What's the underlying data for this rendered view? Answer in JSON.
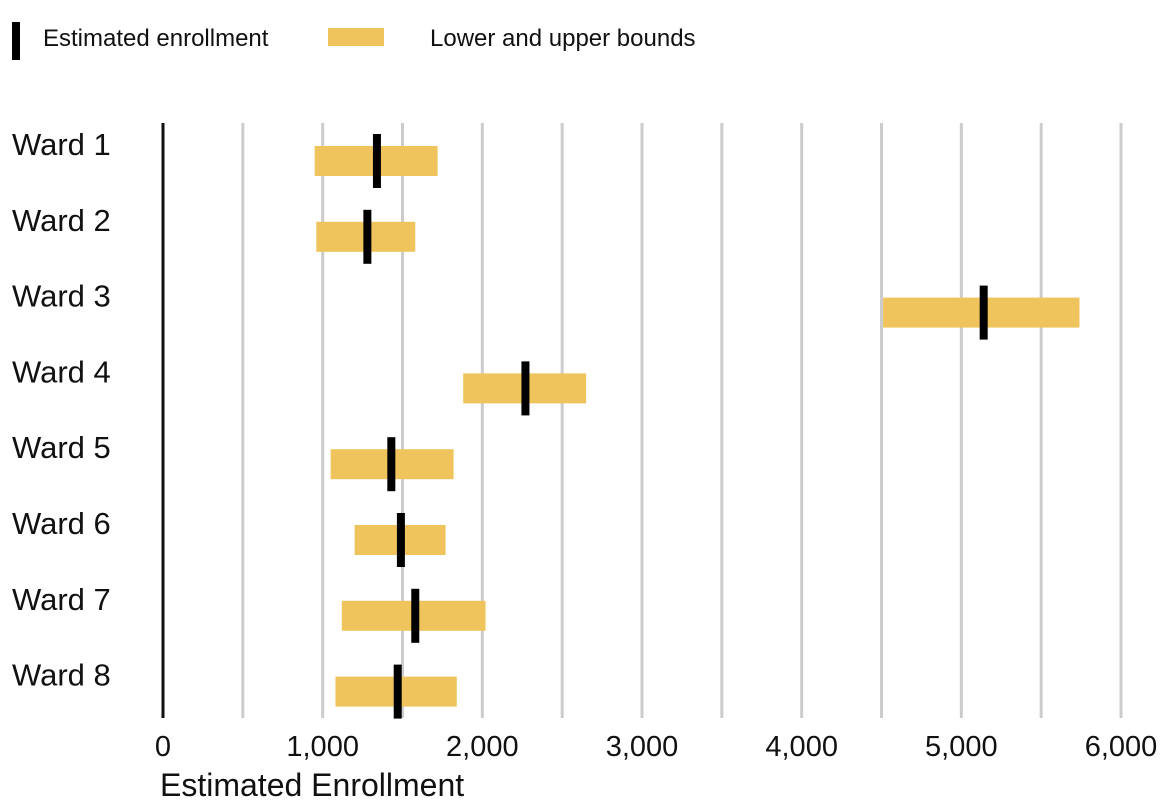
{
  "chart_data": {
    "type": "range-bar",
    "orientation": "horizontal",
    "categories": [
      "Ward 1",
      "Ward 2",
      "Ward 3",
      "Ward 4",
      "Ward 5",
      "Ward 6",
      "Ward 7",
      "Ward 8"
    ],
    "series": [
      {
        "name": "Estimated enrollment",
        "values": [
          1340,
          1280,
          5140,
          2270,
          1430,
          1490,
          1580,
          1470
        ]
      },
      {
        "name": "Lower and upper bounds",
        "lower": [
          950,
          960,
          4510,
          1880,
          1050,
          1200,
          1120,
          1080
        ],
        "upper": [
          1720,
          1580,
          5740,
          2650,
          1820,
          1770,
          2020,
          1840
        ]
      }
    ],
    "xlabel": "Estimated Enrollment",
    "xlim": [
      0,
      6000
    ],
    "x_ticks": [
      0,
      1000,
      2000,
      3000,
      4000,
      5000,
      6000
    ],
    "x_tick_labels": [
      "0",
      "1,000",
      "2,000",
      "3,000",
      "4,000",
      "5,000",
      "6,000"
    ],
    "grid": true,
    "legend_position": "top-left",
    "colors": {
      "estimate": "#000000",
      "bounds": "#F0C45C",
      "grid": "#CCCCCC"
    }
  }
}
